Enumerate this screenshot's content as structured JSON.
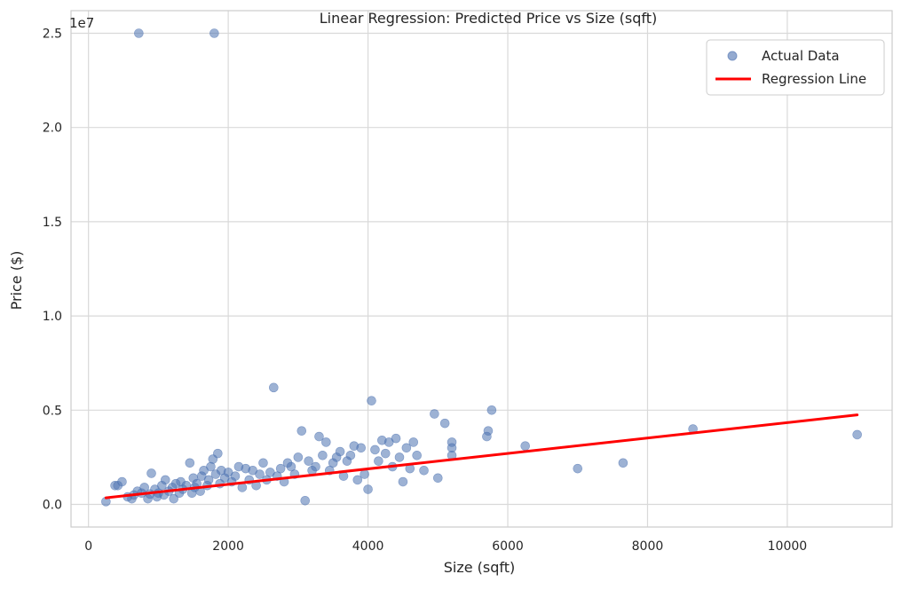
{
  "chart_data": {
    "type": "scatter",
    "title": "Linear Regression: Predicted Price vs Size (sqft)",
    "xlabel": "Size (sqft)",
    "ylabel": "Price ($)",
    "y_offset_label": "1e7",
    "xlim": [
      -250,
      11500
    ],
    "ylim": [
      -1200000,
      26200000
    ],
    "xticks": [
      0,
      2000,
      4000,
      6000,
      8000,
      10000
    ],
    "xtick_labels": [
      "0",
      "2000",
      "4000",
      "6000",
      "8000",
      "10000"
    ],
    "yticks": [
      0,
      5000000,
      10000000,
      15000000,
      20000000,
      25000000
    ],
    "ytick_labels": [
      "0.0",
      "0.5",
      "1.0",
      "1.5",
      "2.0",
      "2.5"
    ],
    "grid": true,
    "legend_position": "top-right",
    "colors": {
      "points": "#4c72b0",
      "regression": "#ff0000",
      "grid": "#d9d9d9",
      "spine": "#cccccc"
    },
    "series": [
      {
        "name": "Actual Data",
        "kind": "scatter",
        "points": [
          [
            250,
            150000
          ],
          [
            380,
            1000000
          ],
          [
            420,
            1000000
          ],
          [
            480,
            1200000
          ],
          [
            560,
            400000
          ],
          [
            620,
            300000
          ],
          [
            650,
            500000
          ],
          [
            700,
            700000
          ],
          [
            720,
            25000000
          ],
          [
            760,
            600000
          ],
          [
            800,
            900000
          ],
          [
            850,
            300000
          ],
          [
            880,
            550000
          ],
          [
            900,
            1650000
          ],
          [
            950,
            800000
          ],
          [
            980,
            400000
          ],
          [
            1000,
            600000
          ],
          [
            1050,
            1000000
          ],
          [
            1080,
            500000
          ],
          [
            1100,
            1300000
          ],
          [
            1150,
            700000
          ],
          [
            1200,
            900000
          ],
          [
            1220,
            300000
          ],
          [
            1250,
            1100000
          ],
          [
            1300,
            600000
          ],
          [
            1320,
            1200000
          ],
          [
            1350,
            800000
          ],
          [
            1400,
            1000000
          ],
          [
            1450,
            2200000
          ],
          [
            1480,
            600000
          ],
          [
            1500,
            1400000
          ],
          [
            1520,
            900000
          ],
          [
            1550,
            1100000
          ],
          [
            1600,
            700000
          ],
          [
            1620,
            1500000
          ],
          [
            1650,
            1800000
          ],
          [
            1700,
            1000000
          ],
          [
            1720,
            1300000
          ],
          [
            1750,
            2000000
          ],
          [
            1780,
            2400000
          ],
          [
            1800,
            25000000
          ],
          [
            1820,
            1600000
          ],
          [
            1850,
            2700000
          ],
          [
            1880,
            1100000
          ],
          [
            1900,
            1800000
          ],
          [
            1950,
            1400000
          ],
          [
            2000,
            1700000
          ],
          [
            2050,
            1200000
          ],
          [
            2100,
            1500000
          ],
          [
            2150,
            2000000
          ],
          [
            2200,
            900000
          ],
          [
            2250,
            1900000
          ],
          [
            2300,
            1300000
          ],
          [
            2350,
            1800000
          ],
          [
            2400,
            1000000
          ],
          [
            2450,
            1600000
          ],
          [
            2500,
            2200000
          ],
          [
            2550,
            1300000
          ],
          [
            2600,
            1700000
          ],
          [
            2650,
            6200000
          ],
          [
            2700,
            1500000
          ],
          [
            2750,
            1900000
          ],
          [
            2800,
            1200000
          ],
          [
            2850,
            2200000
          ],
          [
            2900,
            2000000
          ],
          [
            2950,
            1600000
          ],
          [
            3000,
            2500000
          ],
          [
            3050,
            3900000
          ],
          [
            3100,
            200000
          ],
          [
            3150,
            2300000
          ],
          [
            3200,
            1800000
          ],
          [
            3250,
            2000000
          ],
          [
            3300,
            3600000
          ],
          [
            3350,
            2600000
          ],
          [
            3400,
            3300000
          ],
          [
            3450,
            1800000
          ],
          [
            3500,
            2200000
          ],
          [
            3550,
            2500000
          ],
          [
            3600,
            2800000
          ],
          [
            3650,
            1500000
          ],
          [
            3700,
            2300000
          ],
          [
            3750,
            2600000
          ],
          [
            3800,
            3100000
          ],
          [
            3850,
            1300000
          ],
          [
            3900,
            3000000
          ],
          [
            3950,
            1600000
          ],
          [
            4000,
            800000
          ],
          [
            4050,
            5500000
          ],
          [
            4100,
            2900000
          ],
          [
            4150,
            2300000
          ],
          [
            4200,
            3400000
          ],
          [
            4250,
            2700000
          ],
          [
            4300,
            3300000
          ],
          [
            4350,
            2000000
          ],
          [
            4400,
            3500000
          ],
          [
            4450,
            2500000
          ],
          [
            4500,
            1200000
          ],
          [
            4550,
            3000000
          ],
          [
            4600,
            1900000
          ],
          [
            4650,
            3300000
          ],
          [
            4700,
            2600000
          ],
          [
            4800,
            1800000
          ],
          [
            4950,
            4800000
          ],
          [
            5000,
            1400000
          ],
          [
            5100,
            4300000
          ],
          [
            5200,
            3300000
          ],
          [
            5200,
            3000000
          ],
          [
            5200,
            2600000
          ],
          [
            5700,
            3600000
          ],
          [
            5720,
            3900000
          ],
          [
            5770,
            5000000
          ],
          [
            6250,
            3100000
          ],
          [
            7000,
            1900000
          ],
          [
            7650,
            2200000
          ],
          [
            8650,
            4000000
          ],
          [
            11000,
            3700000
          ]
        ]
      },
      {
        "name": "Regression Line",
        "kind": "line",
        "points": [
          [
            250,
            350000
          ],
          [
            11000,
            4750000
          ]
        ]
      }
    ]
  }
}
